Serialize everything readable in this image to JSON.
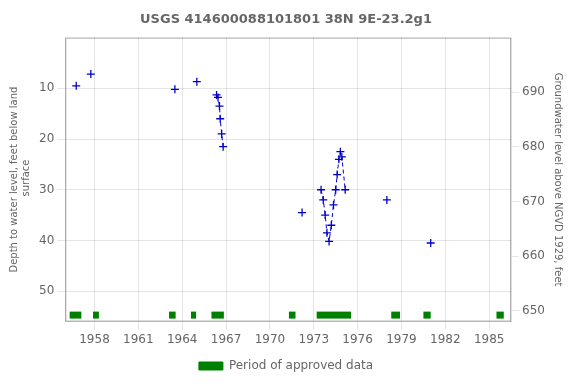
{
  "chart_data": {
    "type": "scatter",
    "title": "USGS 414600088101801 38N 9E-23.2g1",
    "ylabel": "Depth to water level, feet below land\n surface",
    "y2label": "Groundwater level above NGVD 1929, feet",
    "xlim": [
      1956.0,
      1986.5
    ],
    "xticks": [
      1958,
      1961,
      1964,
      1967,
      1970,
      1973,
      1976,
      1979,
      1982,
      1985
    ],
    "ylim": [
      56,
      0
    ],
    "yticks": [
      10,
      20,
      30,
      40,
      50
    ],
    "y2lim": [
      648.0,
      700.0
    ],
    "y2ticks": [
      650,
      660,
      670,
      680,
      690
    ],
    "grid": true,
    "legend": "bottom",
    "series": [
      {
        "color": "#0000cc",
        "marker": "plus",
        "line_style": "none",
        "x": [
          1956.75,
          1957.75,
          1963.5,
          1965.0,
          1972.2,
          1978.0,
          1981.0
        ],
        "values": [
          9.5,
          7.2,
          10.2,
          8.7,
          34.5,
          32.0,
          40.5
        ]
      },
      {
        "color": "#0000cc",
        "marker": "plus",
        "line_style": "dashed",
        "x": [
          1966.35,
          1966.45,
          1966.55,
          1966.6,
          1966.7,
          1966.8
        ],
        "values": [
          11.3,
          11.8,
          13.5,
          16.0,
          19.0,
          21.5
        ]
      },
      {
        "color": "#0000cc",
        "marker": "plus",
        "line_style": "dashed",
        "x": [
          1973.5,
          1973.65,
          1973.78,
          1973.9,
          1974.05,
          1974.2,
          1974.35,
          1974.5,
          1974.6,
          1974.72,
          1974.82,
          1974.92,
          1975.15
        ],
        "values": [
          30.0,
          32.0,
          35.0,
          38.5,
          40.2,
          37.0,
          33.0,
          30.0,
          27.0,
          24.0,
          22.5,
          23.5,
          30.0
        ]
      },
      {
        "name": "Period of approved data",
        "type": "span",
        "color": "#008000",
        "x_ranges": [
          [
            1956.3,
            1957.1
          ],
          [
            1957.9,
            1958.3
          ],
          [
            1963.1,
            1963.55
          ],
          [
            1964.6,
            1964.95
          ],
          [
            1966.0,
            1966.85
          ],
          [
            1971.3,
            1971.75
          ],
          [
            1973.2,
            1975.55
          ],
          [
            1978.3,
            1978.9
          ],
          [
            1980.5,
            1981.0
          ],
          [
            1985.5,
            1986.0
          ]
        ]
      }
    ]
  }
}
